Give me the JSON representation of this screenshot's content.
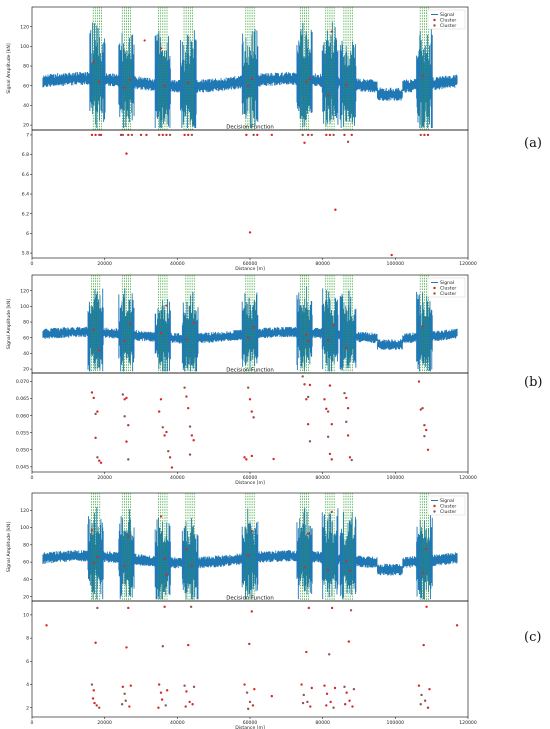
{
  "panels": [
    {
      "label": "(a)"
    },
    {
      "label": "(b)"
    },
    {
      "label": "(c)"
    }
  ],
  "colors": {
    "signal": "#1f77b4",
    "cluster_primary": "#d62728",
    "cluster_secondary": "#8c564b",
    "window_lines": "#2ca02c",
    "axes": "#000000",
    "background": "#ffffff"
  },
  "chart_data": [
    {
      "panel": "(a)",
      "type": "line",
      "ylabel": "Signal Amplitude [kN]",
      "xlim": [
        0,
        120000
      ],
      "ylim": [
        15,
        140
      ],
      "yticks": [
        20,
        40,
        60,
        80,
        100,
        120
      ],
      "grid": false,
      "legend": {
        "placement": "top-right",
        "entries": [
          "Signal",
          "Cluster",
          "Cluster"
        ]
      },
      "signal_baseline": 63,
      "cluster_windows_x": [
        18000,
        26000,
        36000,
        43000,
        60000,
        75000,
        82000,
        87000,
        108000
      ],
      "red_points": [
        {
          "x": 17000,
          "y": 84
        },
        {
          "x": 18500,
          "y": 64
        },
        {
          "x": 25500,
          "y": 58
        },
        {
          "x": 27000,
          "y": 66
        },
        {
          "x": 31000,
          "y": 106
        },
        {
          "x": 35500,
          "y": 98
        },
        {
          "x": 36500,
          "y": 60
        },
        {
          "x": 43000,
          "y": 63
        },
        {
          "x": 59500,
          "y": 60
        },
        {
          "x": 60500,
          "y": 67
        },
        {
          "x": 75500,
          "y": 64
        },
        {
          "x": 76500,
          "y": 67
        },
        {
          "x": 81500,
          "y": 50
        },
        {
          "x": 82500,
          "y": 115
        },
        {
          "x": 86500,
          "y": 61
        },
        {
          "x": 107500,
          "y": 70
        }
      ]
    },
    {
      "panel": "(a)",
      "type": "scatter",
      "title": "Decision Function",
      "xlabel": "Distance [m]",
      "xlim": [
        0,
        120000
      ],
      "xticks": [
        0,
        20000,
        40000,
        60000,
        80000,
        100000,
        120000
      ],
      "ylim": [
        5.75,
        7.05
      ],
      "yticks": [
        5.8,
        6.0,
        6.2,
        6.4,
        6.6,
        6.8,
        7.0
      ],
      "grid": false,
      "points": [
        {
          "x": 16500,
          "y": 7.0
        },
        {
          "x": 17500,
          "y": 7.0
        },
        {
          "x": 18500,
          "y": 7.0
        },
        {
          "x": 19000,
          "y": 7.0
        },
        {
          "x": 24500,
          "y": 7.0
        },
        {
          "x": 25000,
          "y": 7.0
        },
        {
          "x": 26000,
          "y": 6.81
        },
        {
          "x": 26500,
          "y": 7.0
        },
        {
          "x": 27500,
          "y": 7.0
        },
        {
          "x": 30000,
          "y": 7.0
        },
        {
          "x": 31500,
          "y": 7.0
        },
        {
          "x": 35000,
          "y": 7.0
        },
        {
          "x": 36000,
          "y": 7.0
        },
        {
          "x": 37000,
          "y": 7.0
        },
        {
          "x": 38000,
          "y": 7.0
        },
        {
          "x": 42000,
          "y": 7.0
        },
        {
          "x": 43000,
          "y": 7.0
        },
        {
          "x": 44000,
          "y": 7.0
        },
        {
          "x": 59000,
          "y": 7.0
        },
        {
          "x": 60000,
          "y": 6.01
        },
        {
          "x": 61000,
          "y": 7.0
        },
        {
          "x": 62000,
          "y": 7.0
        },
        {
          "x": 66000,
          "y": 7.0
        },
        {
          "x": 74500,
          "y": 7.0
        },
        {
          "x": 75000,
          "y": 6.92
        },
        {
          "x": 76000,
          "y": 7.0
        },
        {
          "x": 77000,
          "y": 7.0
        },
        {
          "x": 81000,
          "y": 7.0
        },
        {
          "x": 82000,
          "y": 7.0
        },
        {
          "x": 83000,
          "y": 7.0
        },
        {
          "x": 83500,
          "y": 6.24
        },
        {
          "x": 86000,
          "y": 7.0
        },
        {
          "x": 87000,
          "y": 6.93
        },
        {
          "x": 88000,
          "y": 7.0
        },
        {
          "x": 99000,
          "y": 5.78
        },
        {
          "x": 107000,
          "y": 7.0
        },
        {
          "x": 108000,
          "y": 7.0
        },
        {
          "x": 109000,
          "y": 7.0
        }
      ]
    },
    {
      "panel": "(b)",
      "type": "line",
      "ylabel": "Signal Amplitude [kN]",
      "xlim": [
        0,
        120000
      ],
      "ylim": [
        15,
        140
      ],
      "yticks": [
        20,
        40,
        60,
        80,
        100,
        120
      ],
      "grid": false,
      "legend": {
        "placement": "top-right",
        "entries": [
          "Signal",
          "Cluster",
          "Cluster"
        ]
      },
      "signal_baseline": 63,
      "cluster_windows_x": [
        17500,
        26000,
        36000,
        43500,
        60000,
        75000,
        82000,
        87000,
        108000
      ],
      "red_points": [
        {
          "x": 17000,
          "y": 70
        },
        {
          "x": 18500,
          "y": 44
        },
        {
          "x": 25500,
          "y": 56
        },
        {
          "x": 27000,
          "y": 78
        },
        {
          "x": 35500,
          "y": 66
        },
        {
          "x": 37000,
          "y": 101
        },
        {
          "x": 42500,
          "y": 58
        },
        {
          "x": 44500,
          "y": 79
        },
        {
          "x": 59500,
          "y": 60
        },
        {
          "x": 61000,
          "y": 73
        },
        {
          "x": 75500,
          "y": 64
        },
        {
          "x": 76000,
          "y": 56
        },
        {
          "x": 81500,
          "y": 57
        },
        {
          "x": 83000,
          "y": 76
        },
        {
          "x": 86500,
          "y": 47
        },
        {
          "x": 107500,
          "y": 75
        }
      ]
    },
    {
      "panel": "(b)",
      "type": "scatter",
      "title": "Decision Function",
      "xlabel": "Distance [m]",
      "xlim": [
        0,
        120000
      ],
      "xticks": [
        0,
        20000,
        40000,
        60000,
        80000,
        100000,
        120000
      ],
      "ylim": [
        0.0435,
        0.0725
      ],
      "yticks": [
        0.045,
        0.05,
        0.055,
        0.06,
        0.065,
        0.07
      ],
      "ytick_labels": [
        "0.045",
        "0.050",
        "0.055",
        "0.060",
        "0.065",
        "0.070"
      ],
      "grid": false,
      "points": [
        {
          "x": 16500,
          "y": 0.0668
        },
        {
          "x": 17000,
          "y": 0.0652
        },
        {
          "x": 17500,
          "y": 0.0605
        },
        {
          "x": 18000,
          "y": 0.0612
        },
        {
          "x": 17500,
          "y": 0.0535
        },
        {
          "x": 18000,
          "y": 0.0478
        },
        {
          "x": 18500,
          "y": 0.0468
        },
        {
          "x": 19000,
          "y": 0.0462
        },
        {
          "x": 25000,
          "y": 0.0662
        },
        {
          "x": 25500,
          "y": 0.0648
        },
        {
          "x": 26000,
          "y": 0.0652
        },
        {
          "x": 25500,
          "y": 0.0598
        },
        {
          "x": 26500,
          "y": 0.0572
        },
        {
          "x": 26000,
          "y": 0.0524
        },
        {
          "x": 26500,
          "y": 0.0472
        },
        {
          "x": 35000,
          "y": 0.0612
        },
        {
          "x": 35500,
          "y": 0.0648
        },
        {
          "x": 36000,
          "y": 0.0566
        },
        {
          "x": 36500,
          "y": 0.0542
        },
        {
          "x": 37000,
          "y": 0.0552
        },
        {
          "x": 37500,
          "y": 0.0496
        },
        {
          "x": 38000,
          "y": 0.0478
        },
        {
          "x": 38500,
          "y": 0.0448
        },
        {
          "x": 42000,
          "y": 0.0682
        },
        {
          "x": 42500,
          "y": 0.0656
        },
        {
          "x": 43000,
          "y": 0.0622
        },
        {
          "x": 43500,
          "y": 0.0568
        },
        {
          "x": 44000,
          "y": 0.0542
        },
        {
          "x": 44500,
          "y": 0.0528
        },
        {
          "x": 43500,
          "y": 0.0486
        },
        {
          "x": 58500,
          "y": 0.0478
        },
        {
          "x": 59000,
          "y": 0.0472
        },
        {
          "x": 59500,
          "y": 0.0682
        },
        {
          "x": 60000,
          "y": 0.0648
        },
        {
          "x": 60500,
          "y": 0.0612
        },
        {
          "x": 61000,
          "y": 0.0595
        },
        {
          "x": 60500,
          "y": 0.0482
        },
        {
          "x": 66500,
          "y": 0.0473
        },
        {
          "x": 74500,
          "y": 0.0715
        },
        {
          "x": 75000,
          "y": 0.0692
        },
        {
          "x": 75500,
          "y": 0.0648
        },
        {
          "x": 76000,
          "y": 0.0655
        },
        {
          "x": 76500,
          "y": 0.069
        },
        {
          "x": 76000,
          "y": 0.0575
        },
        {
          "x": 76500,
          "y": 0.0525
        },
        {
          "x": 80500,
          "y": 0.0648
        },
        {
          "x": 81000,
          "y": 0.062
        },
        {
          "x": 81500,
          "y": 0.0612
        },
        {
          "x": 82000,
          "y": 0.0688
        },
        {
          "x": 82500,
          "y": 0.0575
        },
        {
          "x": 81500,
          "y": 0.0538
        },
        {
          "x": 82000,
          "y": 0.0488
        },
        {
          "x": 82500,
          "y": 0.0472
        },
        {
          "x": 86000,
          "y": 0.0666
        },
        {
          "x": 86500,
          "y": 0.0652
        },
        {
          "x": 87000,
          "y": 0.0622
        },
        {
          "x": 86500,
          "y": 0.0582
        },
        {
          "x": 87000,
          "y": 0.0542
        },
        {
          "x": 87500,
          "y": 0.0478
        },
        {
          "x": 88000,
          "y": 0.047
        },
        {
          "x": 106500,
          "y": 0.07
        },
        {
          "x": 107000,
          "y": 0.0618
        },
        {
          "x": 107500,
          "y": 0.0622
        },
        {
          "x": 108000,
          "y": 0.0572
        },
        {
          "x": 108500,
          "y": 0.0558
        },
        {
          "x": 108000,
          "y": 0.054
        },
        {
          "x": 109000,
          "y": 0.05
        }
      ]
    },
    {
      "panel": "(c)",
      "type": "line",
      "ylabel": "Signal Amplitude [kN]",
      "xlim": [
        0,
        120000
      ],
      "ylim": [
        15,
        140
      ],
      "yticks": [
        20,
        40,
        60,
        80,
        100,
        120
      ],
      "grid": false,
      "legend": {
        "placement": "top-right",
        "entries": [
          "Signal",
          "Cluster",
          "Cluster"
        ]
      },
      "signal_baseline": 63,
      "cluster_windows_x": [
        17500,
        26000,
        36000,
        43500,
        60000,
        75000,
        82000,
        87000,
        108000
      ],
      "red_points": [
        {
          "x": 16500,
          "y": 97
        },
        {
          "x": 17000,
          "y": 59
        },
        {
          "x": 18000,
          "y": 66
        },
        {
          "x": 25500,
          "y": 56
        },
        {
          "x": 26500,
          "y": 90
        },
        {
          "x": 35500,
          "y": 113
        },
        {
          "x": 36500,
          "y": 64
        },
        {
          "x": 37000,
          "y": 45
        },
        {
          "x": 42500,
          "y": 75
        },
        {
          "x": 44000,
          "y": 56
        },
        {
          "x": 59500,
          "y": 68
        },
        {
          "x": 60500,
          "y": 96
        },
        {
          "x": 75000,
          "y": 54
        },
        {
          "x": 76000,
          "y": 93
        },
        {
          "x": 81500,
          "y": 51
        },
        {
          "x": 82500,
          "y": 118
        },
        {
          "x": 86500,
          "y": 61
        },
        {
          "x": 87500,
          "y": 50
        },
        {
          "x": 107500,
          "y": 48
        },
        {
          "x": 108500,
          "y": 75
        }
      ]
    },
    {
      "panel": "(c)",
      "type": "scatter",
      "title": "Decision Function",
      "xlabel": "Distance [m]",
      "xlim": [
        0,
        120000
      ],
      "xticks": [
        0,
        20000,
        40000,
        60000,
        80000,
        100000,
        120000
      ],
      "ylim": [
        1.2,
        11.2
      ],
      "yticks": [
        2,
        4,
        6,
        8,
        10
      ],
      "grid": false,
      "points": [
        {
          "x": 4000,
          "y": 9.1
        },
        {
          "x": 117000,
          "y": 9.1
        },
        {
          "x": 16500,
          "y": 4.0
        },
        {
          "x": 17000,
          "y": 3.5
        },
        {
          "x": 17500,
          "y": 7.6
        },
        {
          "x": 18000,
          "y": 10.6
        },
        {
          "x": 16800,
          "y": 2.8
        },
        {
          "x": 17800,
          "y": 2.2
        },
        {
          "x": 18500,
          "y": 2.0
        },
        {
          "x": 17200,
          "y": 2.4
        },
        {
          "x": 25000,
          "y": 3.8
        },
        {
          "x": 25500,
          "y": 3.2
        },
        {
          "x": 26000,
          "y": 7.2
        },
        {
          "x": 26500,
          "y": 10.6
        },
        {
          "x": 25800,
          "y": 2.6
        },
        {
          "x": 26800,
          "y": 2.1
        },
        {
          "x": 27200,
          "y": 3.9
        },
        {
          "x": 24800,
          "y": 2.3
        },
        {
          "x": 35000,
          "y": 4.0
        },
        {
          "x": 35500,
          "y": 3.3
        },
        {
          "x": 36000,
          "y": 7.3
        },
        {
          "x": 36500,
          "y": 10.7
        },
        {
          "x": 35800,
          "y": 2.7
        },
        {
          "x": 36800,
          "y": 2.2
        },
        {
          "x": 37200,
          "y": 3.5
        },
        {
          "x": 34800,
          "y": 2.0
        },
        {
          "x": 42000,
          "y": 3.9
        },
        {
          "x": 42500,
          "y": 3.4
        },
        {
          "x": 43000,
          "y": 7.4
        },
        {
          "x": 43800,
          "y": 10.7
        },
        {
          "x": 43400,
          "y": 2.5
        },
        {
          "x": 44200,
          "y": 2.3
        },
        {
          "x": 44600,
          "y": 3.8
        },
        {
          "x": 42300,
          "y": 2.1
        },
        {
          "x": 58500,
          "y": 4.0
        },
        {
          "x": 59200,
          "y": 3.3
        },
        {
          "x": 59800,
          "y": 7.5
        },
        {
          "x": 60500,
          "y": 10.3
        },
        {
          "x": 60000,
          "y": 2.5
        },
        {
          "x": 60800,
          "y": 2.2
        },
        {
          "x": 61200,
          "y": 3.6
        },
        {
          "x": 59500,
          "y": 1.9
        },
        {
          "x": 66000,
          "y": 3.0
        },
        {
          "x": 74200,
          "y": 4.0
        },
        {
          "x": 74800,
          "y": 3.1
        },
        {
          "x": 75500,
          "y": 6.8
        },
        {
          "x": 76200,
          "y": 10.6
        },
        {
          "x": 75800,
          "y": 2.5
        },
        {
          "x": 76600,
          "y": 2.1
        },
        {
          "x": 77000,
          "y": 3.7
        },
        {
          "x": 74600,
          "y": 2.4
        },
        {
          "x": 80500,
          "y": 3.9
        },
        {
          "x": 81200,
          "y": 3.2
        },
        {
          "x": 81800,
          "y": 6.6
        },
        {
          "x": 82600,
          "y": 10.6
        },
        {
          "x": 82200,
          "y": 2.5
        },
        {
          "x": 83000,
          "y": 2.0
        },
        {
          "x": 83400,
          "y": 3.7
        },
        {
          "x": 81000,
          "y": 2.2
        },
        {
          "x": 86000,
          "y": 3.8
        },
        {
          "x": 86600,
          "y": 3.3
        },
        {
          "x": 87200,
          "y": 7.7
        },
        {
          "x": 87800,
          "y": 10.4
        },
        {
          "x": 87400,
          "y": 2.6
        },
        {
          "x": 88200,
          "y": 2.1
        },
        {
          "x": 88600,
          "y": 3.6
        },
        {
          "x": 86200,
          "y": 2.3
        },
        {
          "x": 106500,
          "y": 3.9
        },
        {
          "x": 107200,
          "y": 3.1
        },
        {
          "x": 107800,
          "y": 7.4
        },
        {
          "x": 108600,
          "y": 10.7
        },
        {
          "x": 108200,
          "y": 2.6
        },
        {
          "x": 109000,
          "y": 2.0
        },
        {
          "x": 109400,
          "y": 3.6
        },
        {
          "x": 107000,
          "y": 2.3
        }
      ]
    }
  ]
}
